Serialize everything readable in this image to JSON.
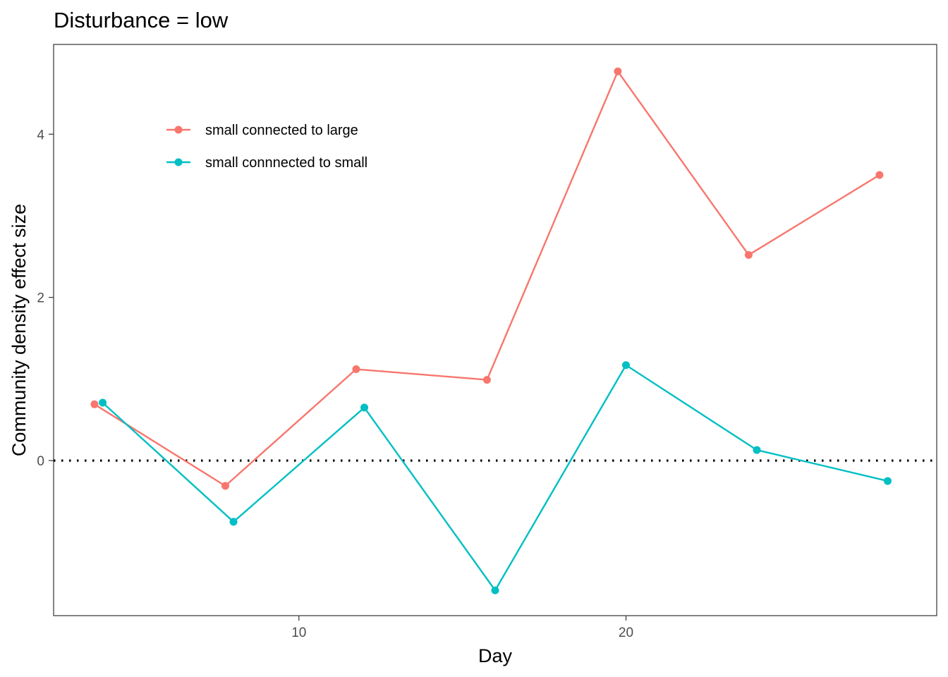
{
  "chart_data": {
    "type": "line",
    "title": "Disturbance = low",
    "xlabel": "Day",
    "ylabel": "Community density effect size",
    "xlim": [
      2.5,
      29.5
    ],
    "ylim": [
      -1.9,
      5.1
    ],
    "xticks": [
      10,
      20
    ],
    "yticks": [
      0,
      2,
      4
    ],
    "grid": false,
    "legend_position": "top-left",
    "reference_line": {
      "y": 0,
      "style": "dotted",
      "color": "#000000"
    },
    "series": [
      {
        "name": "small connected to large",
        "color": "#F8766D",
        "x": [
          3.75,
          7.75,
          11.75,
          15.75,
          19.75,
          23.75,
          27.75
        ],
        "y": [
          0.69,
          -0.31,
          1.12,
          0.99,
          4.77,
          2.52,
          3.5
        ]
      },
      {
        "name": "small connnected to small",
        "color": "#00BFC4",
        "x": [
          4.0,
          8.0,
          12.0,
          16.0,
          20.0,
          24.0,
          28.0
        ],
        "y": [
          0.71,
          -0.75,
          0.65,
          -1.59,
          1.17,
          0.13,
          -0.25
        ]
      }
    ]
  }
}
